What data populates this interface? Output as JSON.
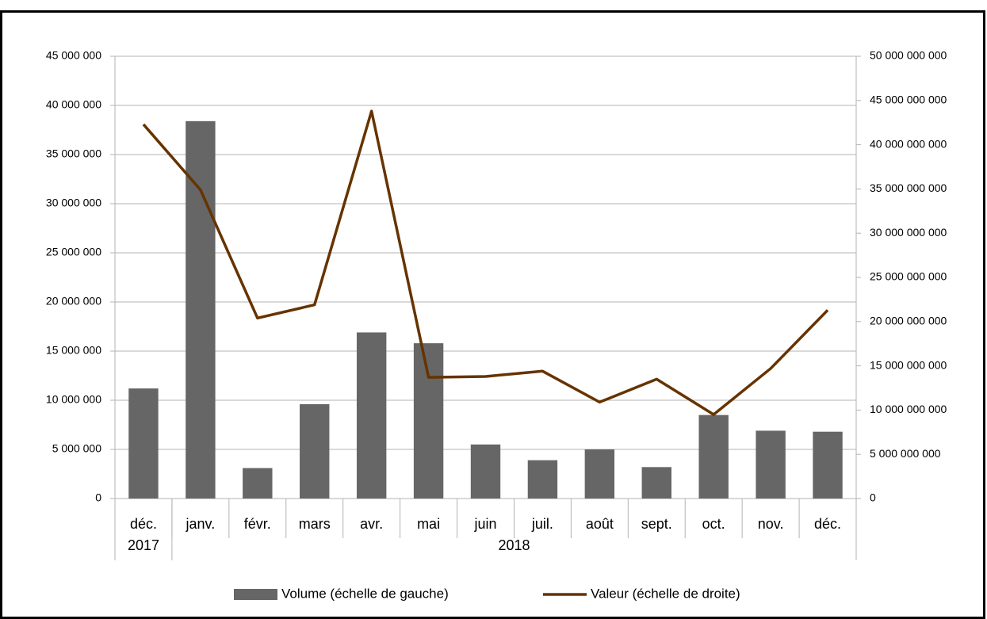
{
  "chart_data": {
    "type": "bar+line",
    "categories": [
      "déc.",
      "janv.",
      "févr.",
      "mars",
      "avr.",
      "mai",
      "juin",
      "juil.",
      "août",
      "sept.",
      "oct.",
      "nov.",
      "déc."
    ],
    "category_groups": [
      {
        "label": "2017",
        "count": 1
      },
      {
        "label": "2018",
        "count": 12
      }
    ],
    "series": [
      {
        "name": "Volume (échelle de gauche)",
        "type": "bar",
        "color": "#666666",
        "axis": "y",
        "values": [
          11200000,
          38400000,
          3100000,
          9600000,
          16900000,
          15800000,
          5500000,
          3900000,
          5000000,
          3200000,
          8500000,
          6900000,
          6800000
        ]
      },
      {
        "name": "Valeur (échelle de droite)",
        "type": "line",
        "color": "#663300",
        "axis": "y2",
        "values": [
          42300000000,
          34900000000,
          20400000000,
          21900000000,
          43800000000,
          13700000000,
          13800000000,
          14400000000,
          10900000000,
          13500000000,
          9500000000,
          14700000000,
          21300000000
        ]
      }
    ],
    "ylim": [
      0,
      45000000
    ],
    "yticks": [
      0,
      {
        "value": 5000000,
        "label": "5 000 000"
      },
      {
        "value": 10000000,
        "label": "10 000 000"
      },
      {
        "value": 15000000,
        "label": "15 000 000"
      },
      {
        "value": 20000000,
        "label": "20 000 000"
      },
      {
        "value": 25000000,
        "label": "25 000 000"
      },
      {
        "value": 30000000,
        "label": "30 000 000"
      },
      {
        "value": 35000000,
        "label": "35 000 000"
      },
      {
        "value": 40000000,
        "label": "40 000 000"
      },
      {
        "value": 45000000,
        "label": "45 000 000"
      }
    ],
    "y2lim": [
      0,
      50000000000
    ],
    "y2ticks": [
      0,
      {
        "value": 5000000000,
        "label": "5 000 000 000"
      },
      {
        "value": 10000000000,
        "label": "10 000 000 000"
      },
      {
        "value": 15000000000,
        "label": "15 000 000 000"
      },
      {
        "value": 20000000000,
        "label": "20 000 000 000"
      },
      {
        "value": 25000000000,
        "label": "25 000 000 000"
      },
      {
        "value": 30000000000,
        "label": "30 000 000 000"
      },
      {
        "value": 35000000000,
        "label": "35 000 000 000"
      },
      {
        "value": 40000000000,
        "label": "40 000 000 000"
      },
      {
        "value": 45000000000,
        "label": "45 000 000 000"
      },
      {
        "value": 50000000000,
        "label": "50 000 000 000"
      }
    ],
    "grid": true,
    "legend": "bottom"
  }
}
